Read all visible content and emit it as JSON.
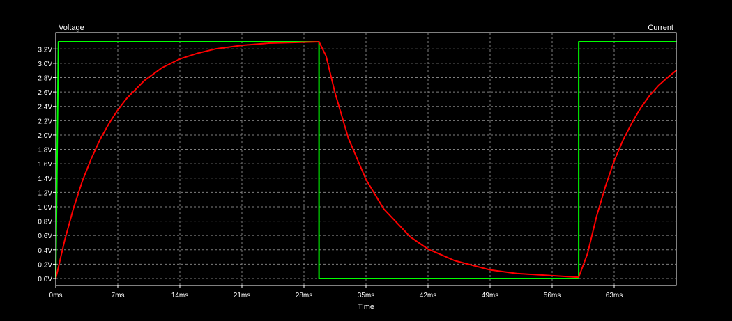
{
  "chart_data": {
    "type": "line",
    "xlabel": "Time",
    "ylabel_left": "Voltage",
    "ylabel_right": "Current",
    "xlim_ms": [
      0,
      70
    ],
    "ylim_v": [
      0,
      3.3
    ],
    "x_ticks": [
      {
        "value": 0,
        "label": "0ms"
      },
      {
        "value": 7,
        "label": "7ms"
      },
      {
        "value": 14,
        "label": "14ms"
      },
      {
        "value": 21,
        "label": "21ms"
      },
      {
        "value": 28,
        "label": "28ms"
      },
      {
        "value": 35,
        "label": "35ms"
      },
      {
        "value": 42,
        "label": "42ms"
      },
      {
        "value": 49,
        "label": "49ms"
      },
      {
        "value": 56,
        "label": "56ms"
      },
      {
        "value": 63,
        "label": "63ms"
      }
    ],
    "y_ticks": [
      {
        "value": 0.0,
        "label": "0.0V"
      },
      {
        "value": 0.2,
        "label": "0.2V"
      },
      {
        "value": 0.4,
        "label": "0.4V"
      },
      {
        "value": 0.6,
        "label": "0.6V"
      },
      {
        "value": 0.8,
        "label": "0.8V"
      },
      {
        "value": 1.0,
        "label": "1.0V"
      },
      {
        "value": 1.2,
        "label": "1.2V"
      },
      {
        "value": 1.4,
        "label": "1.4V"
      },
      {
        "value": 1.6,
        "label": "1.6V"
      },
      {
        "value": 1.8,
        "label": "1.8V"
      },
      {
        "value": 2.0,
        "label": "2.0V"
      },
      {
        "value": 2.2,
        "label": "2.2V"
      },
      {
        "value": 2.4,
        "label": "2.4V"
      },
      {
        "value": 2.6,
        "label": "2.6V"
      },
      {
        "value": 2.8,
        "label": "2.8V"
      },
      {
        "value": 3.0,
        "label": "3.0V"
      },
      {
        "value": 3.2,
        "label": "3.2V"
      }
    ],
    "grid": true,
    "background_color": "#000000",
    "grid_color": "#7f7f7f",
    "series": [
      {
        "color": "#00ff00",
        "x": [
          0,
          0.3,
          0.3,
          29.7,
          29.7,
          59,
          59,
          70
        ],
        "y": [
          0,
          3.3,
          3.3,
          3.3,
          0,
          0,
          3.3,
          3.3
        ]
      },
      {
        "color": "#ff0000",
        "x": [
          0,
          1,
          2,
          3,
          4,
          5,
          6,
          7,
          8,
          10,
          12,
          14,
          16,
          18,
          21,
          24,
          27,
          29.7,
          30.5,
          31.5,
          33,
          35,
          37,
          40,
          42,
          45,
          49,
          52,
          56,
          58.7,
          59,
          60,
          61,
          62,
          63,
          64,
          65,
          66,
          67,
          68,
          69,
          70
        ],
        "y": [
          0.0,
          0.53,
          0.98,
          1.36,
          1.67,
          1.94,
          2.16,
          2.35,
          2.51,
          2.76,
          2.94,
          3.06,
          3.14,
          3.2,
          3.25,
          3.28,
          3.29,
          3.3,
          3.1,
          2.59,
          1.96,
          1.38,
          0.97,
          0.58,
          0.41,
          0.25,
          0.12,
          0.07,
          0.04,
          0.02,
          0.02,
          0.35,
          0.86,
          1.28,
          1.64,
          1.93,
          2.17,
          2.38,
          2.55,
          2.69,
          2.8,
          2.9
        ]
      }
    ]
  }
}
